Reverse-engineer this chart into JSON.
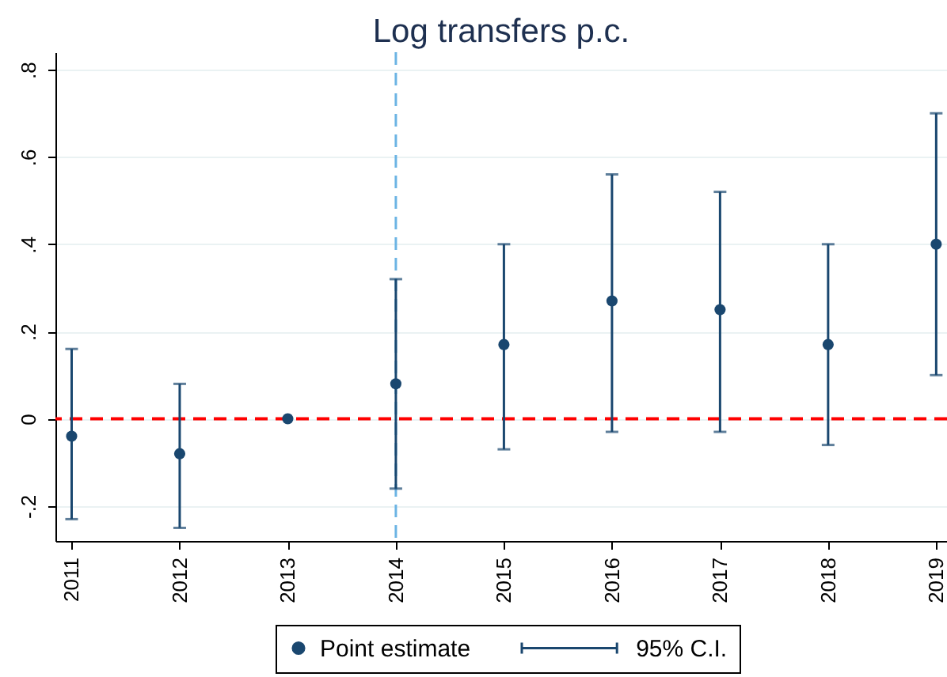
{
  "chart_data": {
    "type": "scatter",
    "title": "Log transfers p.c.",
    "x": [
      2011,
      2012,
      2013,
      2014,
      2015,
      2016,
      2017,
      2018,
      2019
    ],
    "series": [
      {
        "name": "Point estimate",
        "color": "#1a476f",
        "values": [
          -0.04,
          -0.08,
          0,
          0.08,
          0.17,
          0.27,
          0.25,
          0.17,
          0.4
        ],
        "errors": [
          [
            -0.23,
            0.16
          ],
          [
            -0.25,
            0.08
          ],
          null,
          [
            -0.16,
            0.32
          ],
          [
            -0.07,
            0.4
          ],
          [
            -0.03,
            0.56
          ],
          [
            -0.03,
            0.52
          ],
          [
            -0.06,
            0.4
          ],
          [
            0.1,
            0.7
          ]
        ]
      }
    ],
    "xlim": [
      2010.85,
      2019.1
    ],
    "xticks": [
      2011,
      2012,
      2013,
      2014,
      2015,
      2016,
      2017,
      2018,
      2019
    ],
    "ylim": [
      -0.28,
      0.84
    ],
    "yticks": [
      {
        "value": -0.2,
        "label": "-.2"
      },
      0,
      {
        "value": 0.2,
        "label": ".2"
      },
      {
        "value": 0.4,
        "label": ".4"
      },
      {
        "value": 0.6,
        "label": ".6"
      },
      {
        "value": 0.8,
        "label": ".8"
      }
    ],
    "grid": "y",
    "legend": "bottom",
    "marker": "circle",
    "ref_lines": [
      {
        "axis": "y",
        "value": 0,
        "color": "#ff0000",
        "line_style": "dashed"
      },
      {
        "axis": "x",
        "value": 2014,
        "color": "#6cb4e4",
        "line_style": "dashed"
      }
    ],
    "annotations": [
      "95% C.I."
    ]
  }
}
